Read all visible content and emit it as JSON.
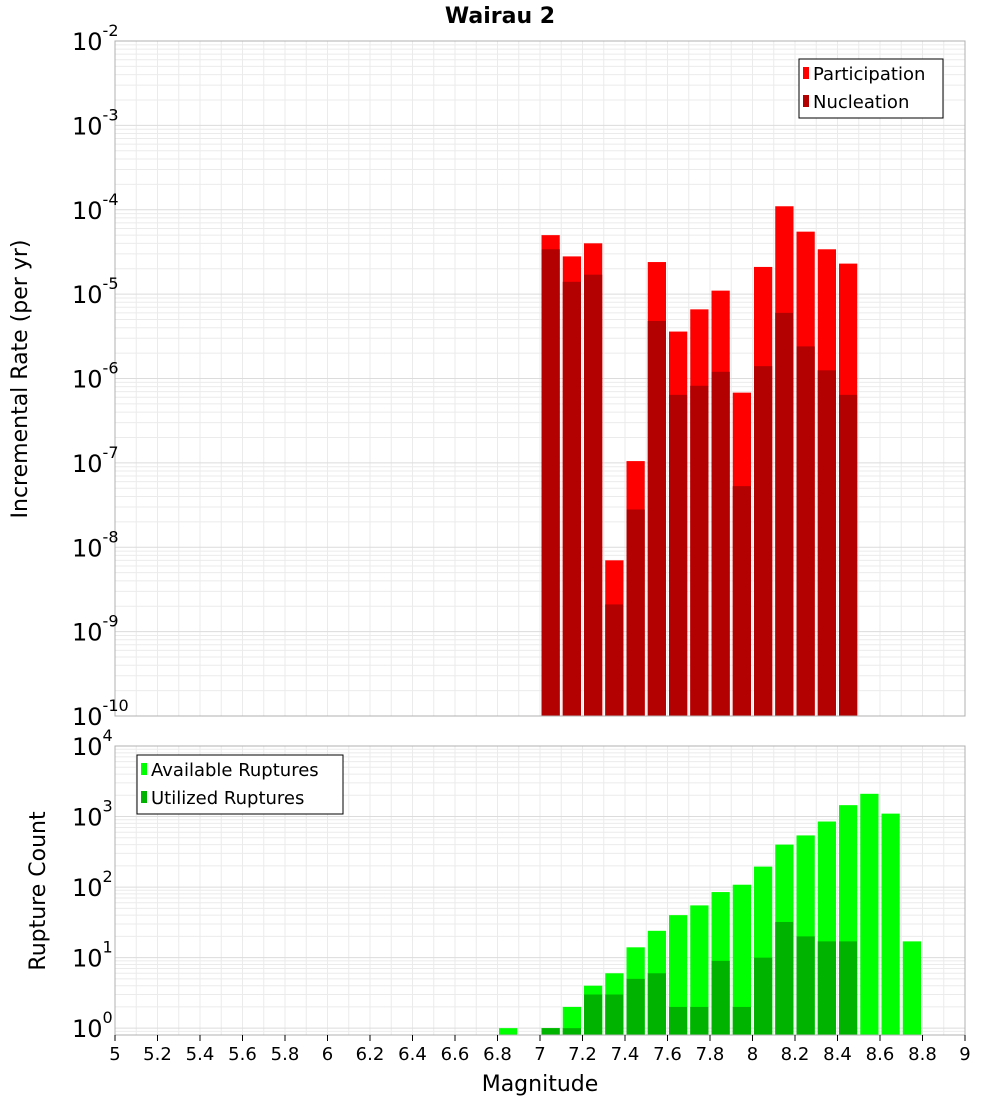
{
  "title": "Wairau 2",
  "xlabel": "Magnitude",
  "x_ticks": [
    "5",
    "5.2",
    "5.4",
    "5.6",
    "5.8",
    "6",
    "6.2",
    "6.4",
    "6.6",
    "6.8",
    "7",
    "7.2",
    "7.4",
    "7.6",
    "7.8",
    "8",
    "8.2",
    "8.4",
    "8.6",
    "8.8",
    "9"
  ],
  "colors": {
    "participation": "#ff0000",
    "nucleation": "#b30000",
    "available": "#00ff00",
    "utilized": "#00b300",
    "grid": "#ebebeb",
    "frame": "#b0b0b0"
  },
  "chart_data": [
    {
      "type": "bar",
      "title": "Wairau 2",
      "xlabel": "Magnitude",
      "ylabel": "Incremental Rate (per yr)",
      "yscale": "log",
      "xlim": [
        5,
        9
      ],
      "ylim": [
        1e-10,
        0.01
      ],
      "y_tick_exponents": [
        "-10",
        "-9",
        "-8",
        "-7",
        "-6",
        "-5",
        "-4",
        "-3",
        "-2"
      ],
      "bar_width": 0.1,
      "legend": {
        "placement": "top-right",
        "entries": [
          "Participation",
          "Nucleation"
        ]
      },
      "x": [
        7.05,
        7.15,
        7.25,
        7.35,
        7.45,
        7.55,
        7.65,
        7.75,
        7.85,
        7.95,
        8.05,
        8.15,
        8.25,
        8.35,
        8.45
      ],
      "series": [
        {
          "name": "Participation",
          "values": [
            5e-05,
            2.8e-05,
            4e-05,
            7e-09,
            1.05e-07,
            2.4e-05,
            3.6e-06,
            6.6e-06,
            1.1e-05,
            6.8e-07,
            2.1e-05,
            0.00011,
            5.5e-05,
            3.4e-05,
            2.3e-05
          ]
        },
        {
          "name": "Nucleation",
          "values": [
            3.4e-05,
            1.4e-05,
            1.7e-05,
            2.1e-09,
            2.8e-08,
            4.8e-06,
            6.4e-07,
            8.2e-07,
            1.2e-06,
            5.3e-08,
            1.4e-06,
            6e-06,
            2.4e-06,
            1.25e-06,
            6.4e-07
          ]
        }
      ]
    },
    {
      "type": "bar",
      "xlabel": "Magnitude",
      "ylabel": "Rupture Count",
      "yscale": "log",
      "xlim": [
        5,
        9
      ],
      "ylim": [
        0.8,
        10000
      ],
      "y_tick_exponents": [
        "0",
        "1",
        "2",
        "3",
        "4"
      ],
      "bar_width": 0.1,
      "legend": {
        "placement": "top-left",
        "entries": [
          "Available Ruptures",
          "Utilized Ruptures"
        ]
      },
      "x": [
        6.85,
        7.05,
        7.15,
        7.25,
        7.35,
        7.45,
        7.55,
        7.65,
        7.75,
        7.85,
        7.95,
        8.05,
        8.15,
        8.25,
        8.35,
        8.45,
        8.55,
        8.65,
        8.75
      ],
      "series": [
        {
          "name": "Available Ruptures",
          "values": [
            1,
            1,
            2,
            4,
            6,
            14,
            24,
            40,
            55,
            85,
            108,
            195,
            400,
            540,
            850,
            1450,
            2100,
            1100,
            17
          ]
        },
        {
          "name": "Utilized Ruptures",
          "values": [
            0,
            1,
            1,
            3,
            3,
            5,
            6,
            2,
            2,
            9,
            2,
            10,
            32,
            20,
            17,
            17,
            0,
            0,
            0
          ]
        }
      ]
    }
  ]
}
